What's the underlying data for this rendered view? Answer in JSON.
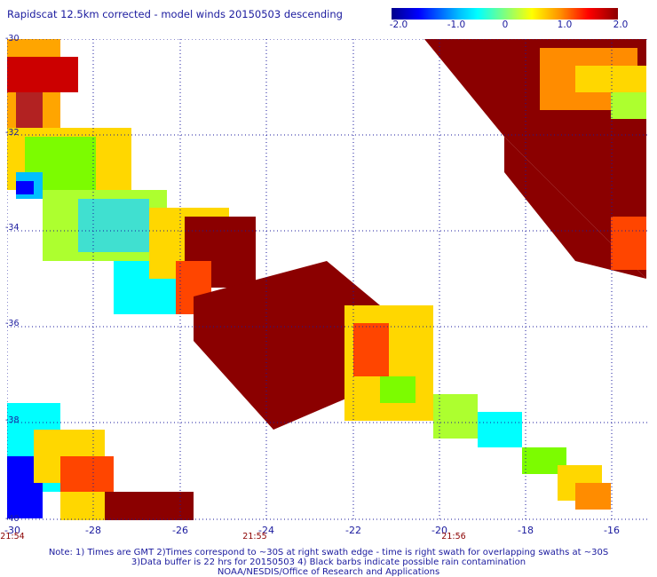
{
  "title": "Rapidscat 12.5km corrected - model winds 20150503 descending",
  "colorbar": {
    "ticks": [
      "-2.0",
      "-1.0",
      "0",
      "1.0",
      "2.0"
    ],
    "tick_values": [
      -2.0,
      -1.0,
      0,
      1.0,
      2.0
    ],
    "range": [
      -2.0,
      2.0
    ]
  },
  "map": {
    "lat_labels": [
      "-30",
      "-32",
      "-34",
      "-36",
      "-38",
      "-40"
    ],
    "lon_labels": [
      "-30",
      "-28",
      "-26",
      "-24",
      "-22",
      "-20",
      "-18",
      "-16"
    ],
    "time_labels": [
      "21:54",
      "21:55",
      "21:56"
    ],
    "gridline_style": "dotted"
  },
  "notes": {
    "line1": "Note: 1) Times are GMT 2)Times correspond to ~30S at right swath edge - time is right swath for overlapping swaths at ~30S",
    "line2": "3)Data buffer is 22 hrs for 20150503 4) Black barbs indicate possible rain contamination",
    "line3": "NOAA/NESDIS/Office of Research and Applications"
  },
  "colors": {
    "text": "#1a1a9e",
    "time_label": "#8b0000"
  }
}
